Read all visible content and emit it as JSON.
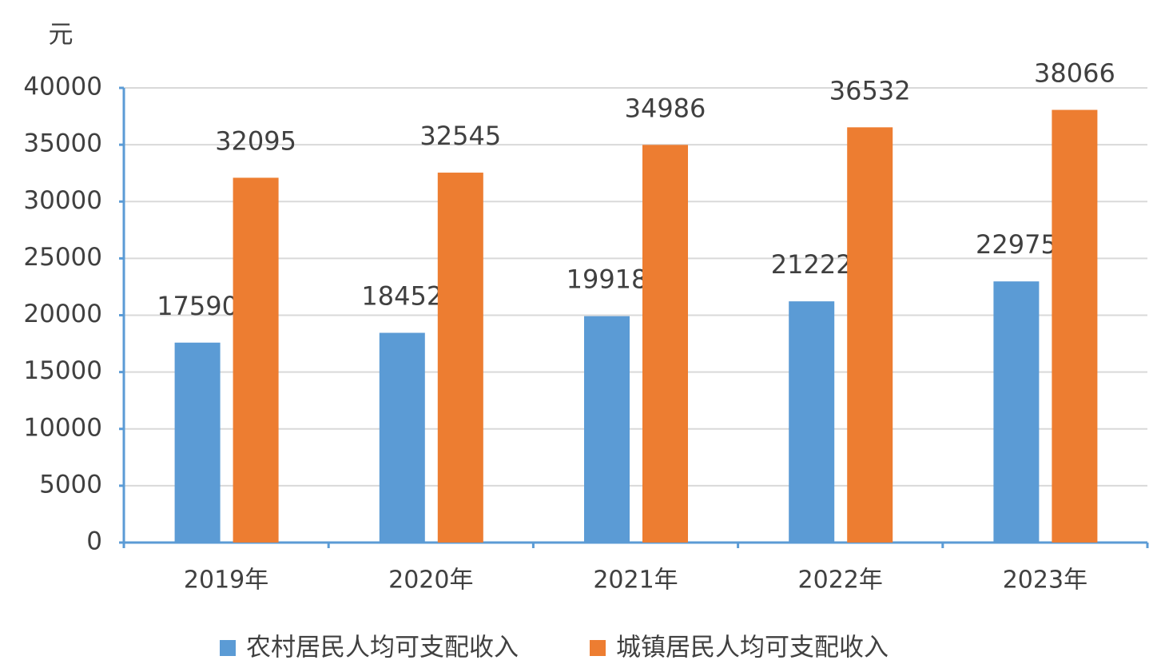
{
  "chart_data": {
    "type": "bar",
    "ylabel": "元",
    "categories": [
      "2019年",
      "2020年",
      "2021年",
      "2022年",
      "2023年"
    ],
    "series": [
      {
        "name": "农村居民人均可支配收入",
        "color": "#5b9bd5",
        "values": [
          17590,
          18452,
          19918,
          21222,
          22975
        ]
      },
      {
        "name": "城镇居民人均可支配收入",
        "color": "#ed7d31",
        "values": [
          32095,
          32545,
          34986,
          36532,
          38066
        ]
      }
    ],
    "ylim": [
      0,
      40000
    ],
    "yticks": [
      0,
      5000,
      10000,
      15000,
      20000,
      25000,
      30000,
      35000,
      40000
    ],
    "grid": true,
    "legend": "bottom"
  }
}
